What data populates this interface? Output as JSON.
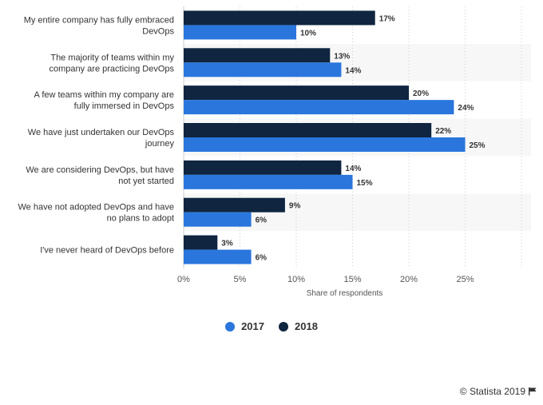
{
  "chart_data": {
    "type": "bar",
    "orientation": "horizontal",
    "categories": [
      [
        "My entire company has fully embraced",
        "DevOps"
      ],
      [
        "The majority of teams within my",
        "company are practicing DevOps"
      ],
      [
        "A few teams within my company are",
        "fully immersed in DevOps"
      ],
      [
        "We have just undertaken our DevOps",
        "journey"
      ],
      [
        "We are considering DevOps, but have",
        "not yet started"
      ],
      [
        "We have not adopted DevOps and have",
        "no plans to adopt"
      ],
      [
        "I've never heard of DevOps before"
      ]
    ],
    "series": [
      {
        "name": "2018",
        "color": "#0f2540",
        "values": [
          17,
          13,
          20,
          22,
          14,
          9,
          3
        ]
      },
      {
        "name": "2017",
        "color": "#2a76dd",
        "values": [
          10,
          14,
          24,
          25,
          15,
          6,
          6
        ]
      }
    ],
    "value_suffix": "%",
    "xlabel": "Share of respondents",
    "xlim": [
      0,
      30
    ],
    "xticks": [
      0,
      5,
      10,
      15,
      20,
      25
    ],
    "tick_suffix": "%"
  },
  "legend": {
    "items": [
      {
        "label": "2017",
        "color": "#2a76dd"
      },
      {
        "label": "2018",
        "color": "#0f2540"
      }
    ]
  },
  "credit": "© Statista 2019"
}
